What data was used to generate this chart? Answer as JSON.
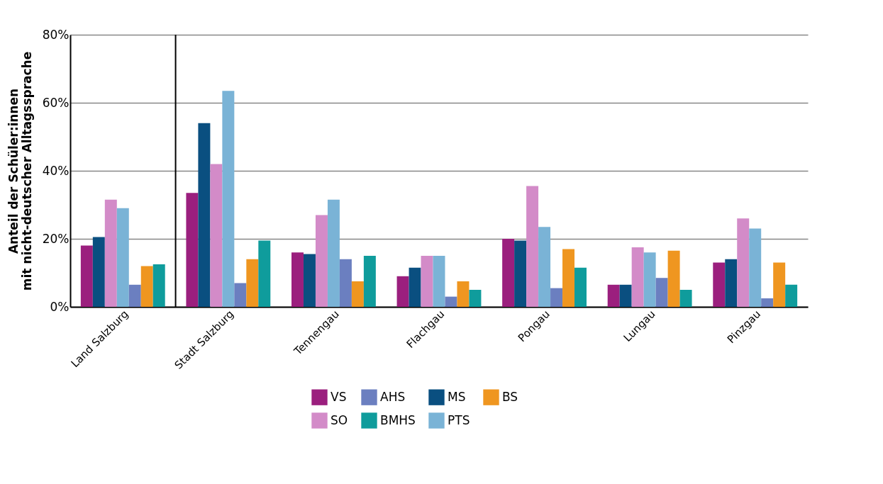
{
  "chart_data": {
    "type": "bar",
    "ylabel": "Anteil der Schüler:innen\nmit nicht-deutscher Alltagssprache",
    "categories": [
      "Land Salzburg",
      "Stadt Salzburg",
      "Tennengau",
      "Flachgau",
      "Pongau",
      "Lungau",
      "Pinzgau"
    ],
    "series": [
      {
        "name": "VS",
        "color": "#9b1f7e",
        "values": [
          18,
          33.5,
          16,
          9,
          20,
          6.5,
          13
        ]
      },
      {
        "name": "MS",
        "color": "#0a4f80",
        "values": [
          20.5,
          54,
          15.5,
          11.5,
          19.5,
          6.5,
          14
        ]
      },
      {
        "name": "SO",
        "color": "#d38bc8",
        "values": [
          31.5,
          42,
          27,
          15,
          35.5,
          17.5,
          26
        ]
      },
      {
        "name": "PTS",
        "color": "#7ab3d6",
        "values": [
          29,
          63.5,
          31.5,
          15,
          23.5,
          16,
          23
        ]
      },
      {
        "name": "AHS",
        "color": "#6b7fc0",
        "values": [
          6.5,
          7,
          14,
          3,
          5.5,
          8.5,
          2.5
        ]
      },
      {
        "name": "BS",
        "color": "#ef9620",
        "values": [
          12,
          14,
          7.5,
          7.5,
          17,
          16.5,
          13
        ]
      },
      {
        "name": "BMHS",
        "color": "#0f9c9c",
        "values": [
          12.5,
          19.5,
          15,
          5,
          11.5,
          5,
          6.5
        ]
      }
    ],
    "ylim": [
      0,
      80
    ],
    "yticks": [
      {
        "value": 0,
        "label": "0%"
      },
      {
        "value": 20,
        "label": "20%"
      },
      {
        "value": 40,
        "label": "40%"
      },
      {
        "value": 60,
        "label": "60%"
      },
      {
        "value": 80,
        "label": "80%"
      }
    ],
    "grid": "y",
    "legend": "bottom",
    "ref_lines": [
      {
        "axis": "x",
        "value": "Stadt Salzburg",
        "color": "#000000"
      }
    ]
  }
}
